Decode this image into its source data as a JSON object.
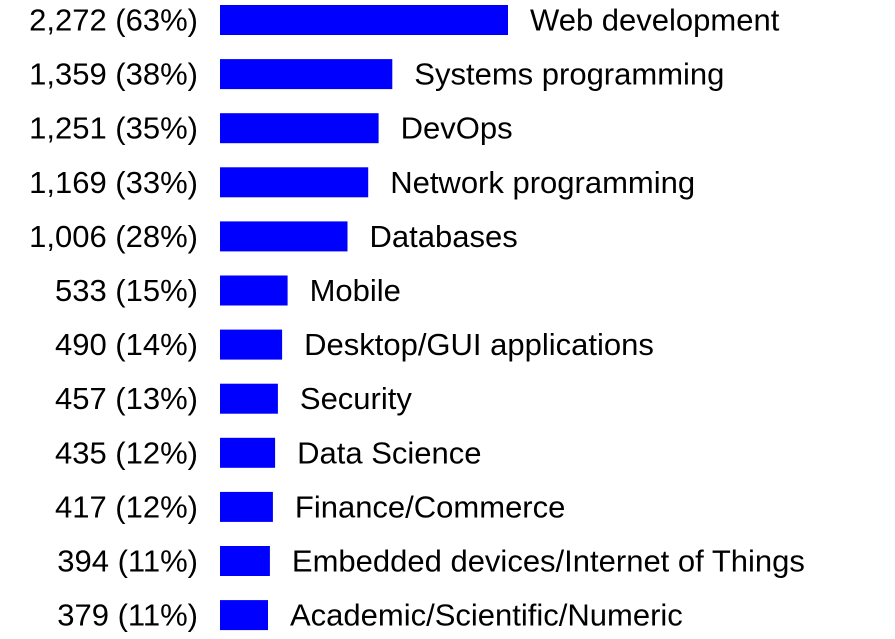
{
  "chart_data": {
    "type": "bar",
    "orientation": "horizontal",
    "bar_color": "#0000ff",
    "categories": [
      "Web development",
      "Systems programming",
      "DevOps",
      "Network programming",
      "Databases",
      "Mobile",
      "Desktop/GUI applications",
      "Security",
      "Data Science",
      "Finance/Commerce",
      "Embedded devices/Internet of Things",
      "Academic/Scientific/Numeric"
    ],
    "values": [
      2272,
      1359,
      1251,
      1169,
      1006,
      533,
      490,
      457,
      435,
      417,
      394,
      379
    ],
    "percentages": [
      63,
      38,
      35,
      33,
      28,
      15,
      14,
      13,
      12,
      12,
      11,
      11
    ],
    "value_labels": [
      "2,272 (63%)",
      "1,359 (38%)",
      "1,251 (35%)",
      "1,169 (33%)",
      "1,006 (28%)",
      "533 (15%)",
      "490 (14%)",
      "457 (13%)",
      "435 (12%)",
      "417 (12%)",
      "394 (11%)",
      "379 (11%)"
    ],
    "title": "",
    "xlabel": "",
    "ylabel": "",
    "grid": false
  }
}
